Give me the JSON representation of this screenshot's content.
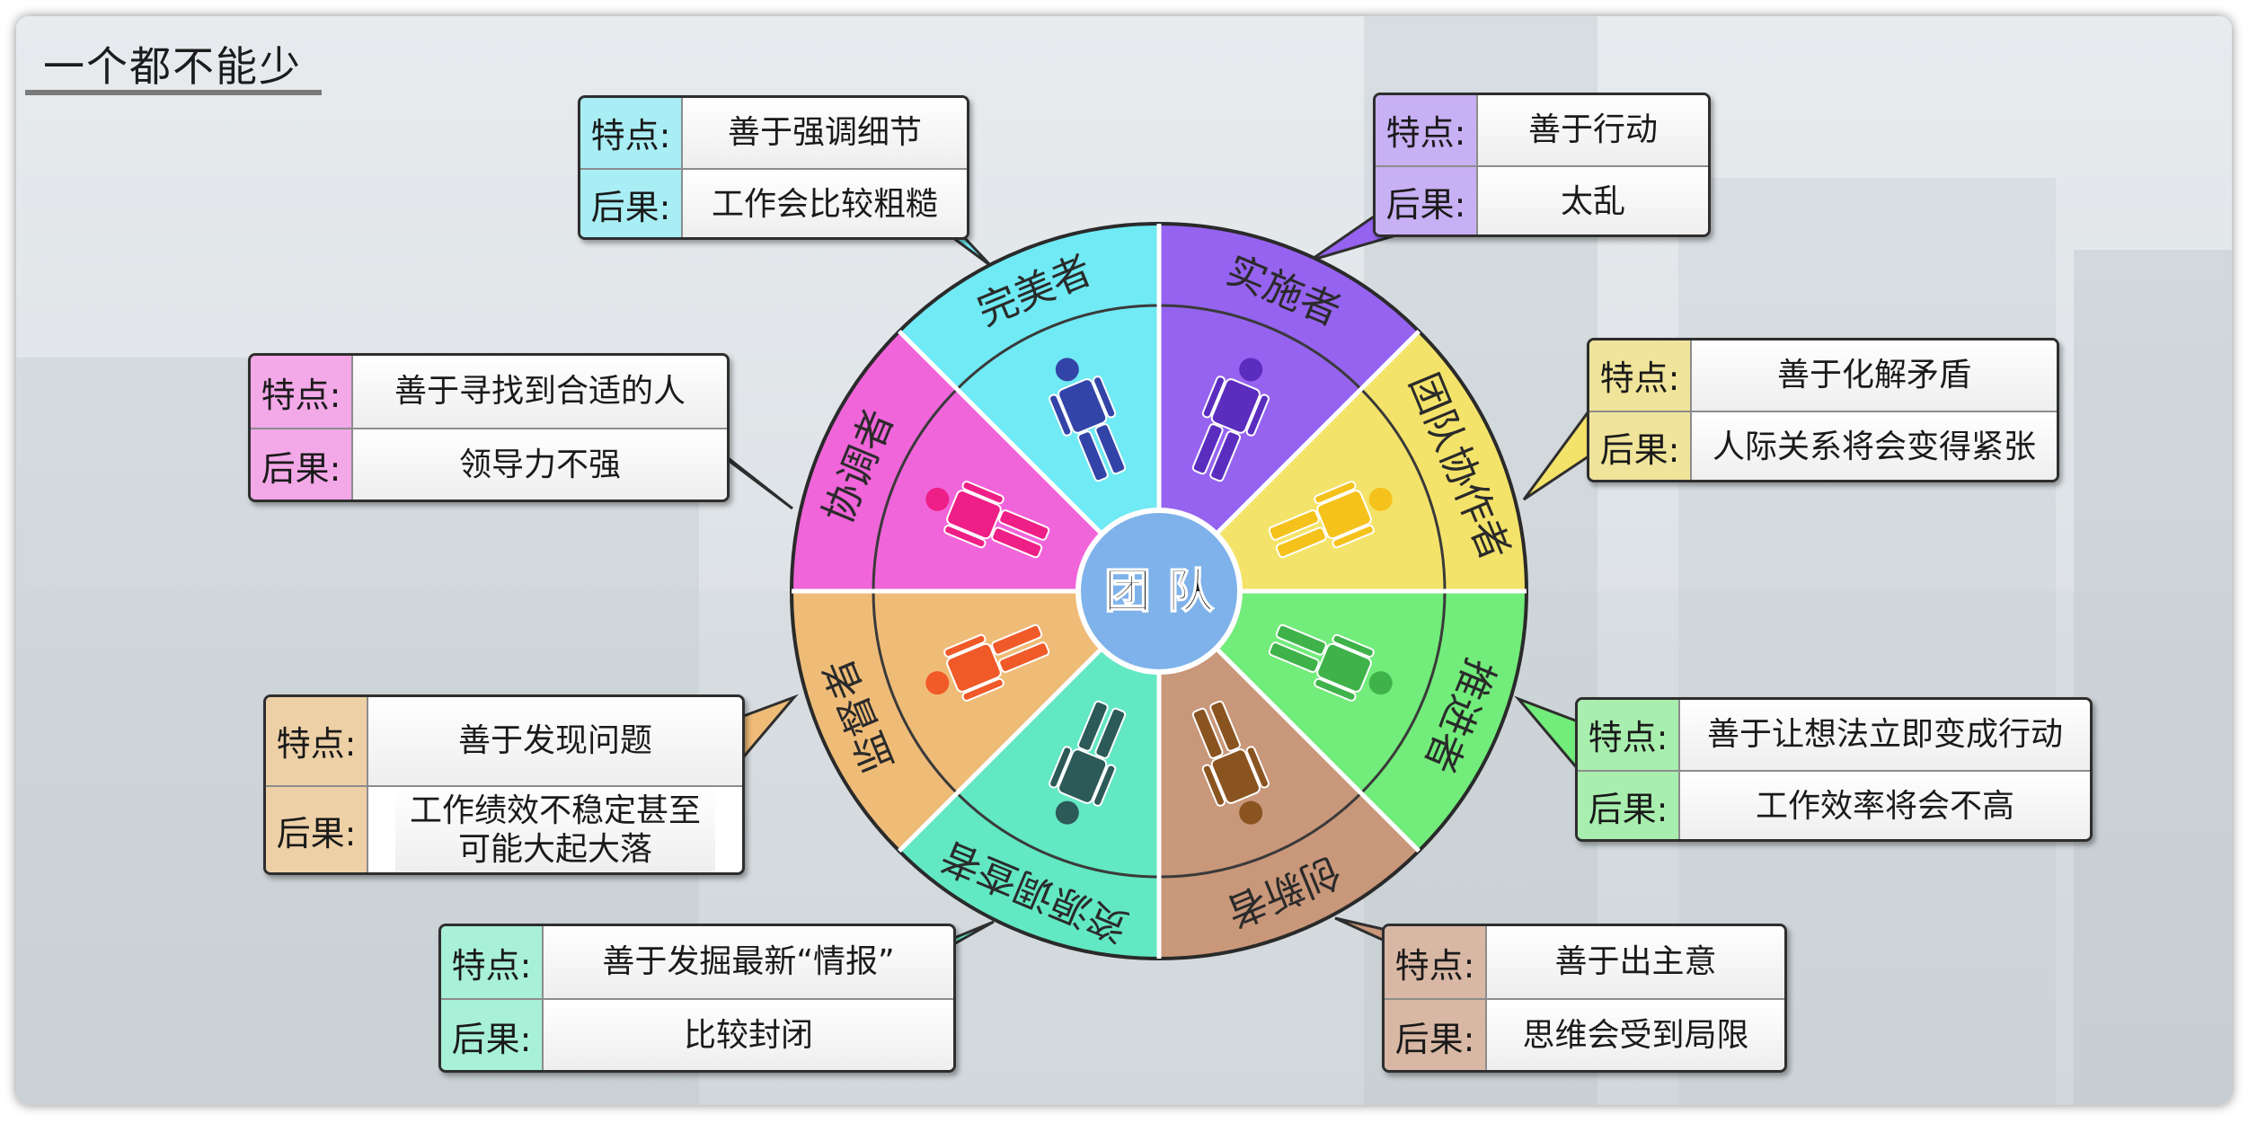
{
  "title": "一个都不能少",
  "center_label": "团 队",
  "roles": [
    {
      "name": "实施者",
      "feature_label": "特点:",
      "feature": "善于行动",
      "consequence_label": "后果:",
      "consequence": "太乱",
      "color": "#9663f0",
      "label_color": "#c8b0f4"
    },
    {
      "name": "团队协作者",
      "feature_label": "特点:",
      "feature": "善于化解矛盾",
      "consequence_label": "后果:",
      "consequence": "人际关系将会变得紧张",
      "color": "#f4e36a",
      "label_color": "#efe49a"
    },
    {
      "name": "推进者",
      "feature_label": "特点:",
      "feature": "善于让想法立即变成行动",
      "consequence_label": "后果:",
      "consequence": "工作效率将会不高",
      "color": "#72ec7a",
      "label_color": "#a8eeae"
    },
    {
      "name": "创新者",
      "feature_label": "特点:",
      "feature": "善于出主意",
      "consequence_label": "后果:",
      "consequence": "思维会受到局限",
      "color": "#c9977a",
      "label_color": "#d8b8a4"
    },
    {
      "name": "资源调查者",
      "feature_label": "特点:",
      "feature": "善于发掘最新“情报”",
      "consequence_label": "后果:",
      "consequence": "比较封闭",
      "color": "#62e8c2",
      "label_color": "#a8f0d8"
    },
    {
      "name": "监督者",
      "feature_label": "特点:",
      "feature": "善于发现问题",
      "consequence_label": "后果:",
      "consequence": "工作绩效不稳定甚至可能大起大落",
      "color": "#efbc78",
      "label_color": "#edd0a6"
    },
    {
      "name": "协调者",
      "feature_label": "特点:",
      "feature": "善于寻找到合适的人",
      "consequence_label": "后果:",
      "consequence": "领导力不强",
      "color": "#f065da",
      "label_color": "#f3a8e8"
    },
    {
      "name": "完美者",
      "feature_label": "特点:",
      "feature": "善于强调细节",
      "consequence_label": "后果:",
      "consequence": "工作会比较粗糙",
      "color": "#70eaf4",
      "label_color": "#a8eef4"
    }
  ],
  "person_colors": [
    "#5b2dbf",
    "#f5c21c",
    "#3fb34a",
    "#8a5420",
    "#2c5a58",
    "#f05a28",
    "#ee1f86",
    "#3344a8"
  ]
}
